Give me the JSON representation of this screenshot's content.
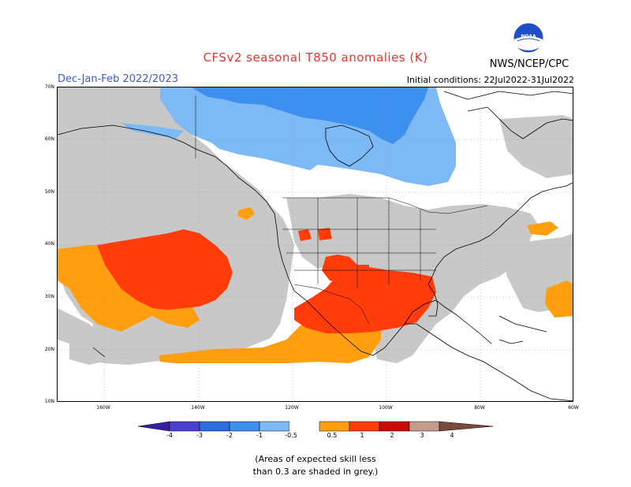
{
  "header": {
    "title": "CFSv2 seasonal T850 anomalies (K)",
    "agency": "NWS/NCEP/CPC",
    "season": "Dec-Jan-Feb 2022/2023",
    "initial_conditions": "Initial conditions: 22Jul2022-31Jul2022",
    "logo_text": "NOAA"
  },
  "map": {
    "lat_labels": [
      "70N",
      "60N",
      "50N",
      "40N",
      "30N",
      "20N",
      "10N"
    ],
    "lon_labels": [
      "160W",
      "140W",
      "120W",
      "100W",
      "80W",
      "60W"
    ]
  },
  "colorbar": {
    "labels": [
      "-4",
      "-3",
      "-2",
      "-1",
      "-0.5",
      "0.5",
      "1",
      "2",
      "3",
      "4"
    ],
    "colors": {
      "lt_-4": "#3a1ea0",
      "-4_-3": "#4a3fd0",
      "-3_-2": "#2d6de0",
      "-2_-1": "#3d8ff0",
      "-1_-0.5": "#7db9f5",
      "-0.5_0.5": "#ffffff",
      "0.5_1": "#ff9e0f",
      "1_2": "#ff3c0a",
      "2_3": "#c80a0a",
      "3_4": "#c49a8f",
      "gt_4": "#7a4a3a"
    }
  },
  "colors": {
    "low_skill_grey": "#c8c8c8",
    "title_red": "#e8342a",
    "season_blue": "#3a5cc8"
  },
  "footnote": {
    "line1": "(Areas of expected skill less",
    "line2": "than 0.3 are shaded in grey.)"
  }
}
